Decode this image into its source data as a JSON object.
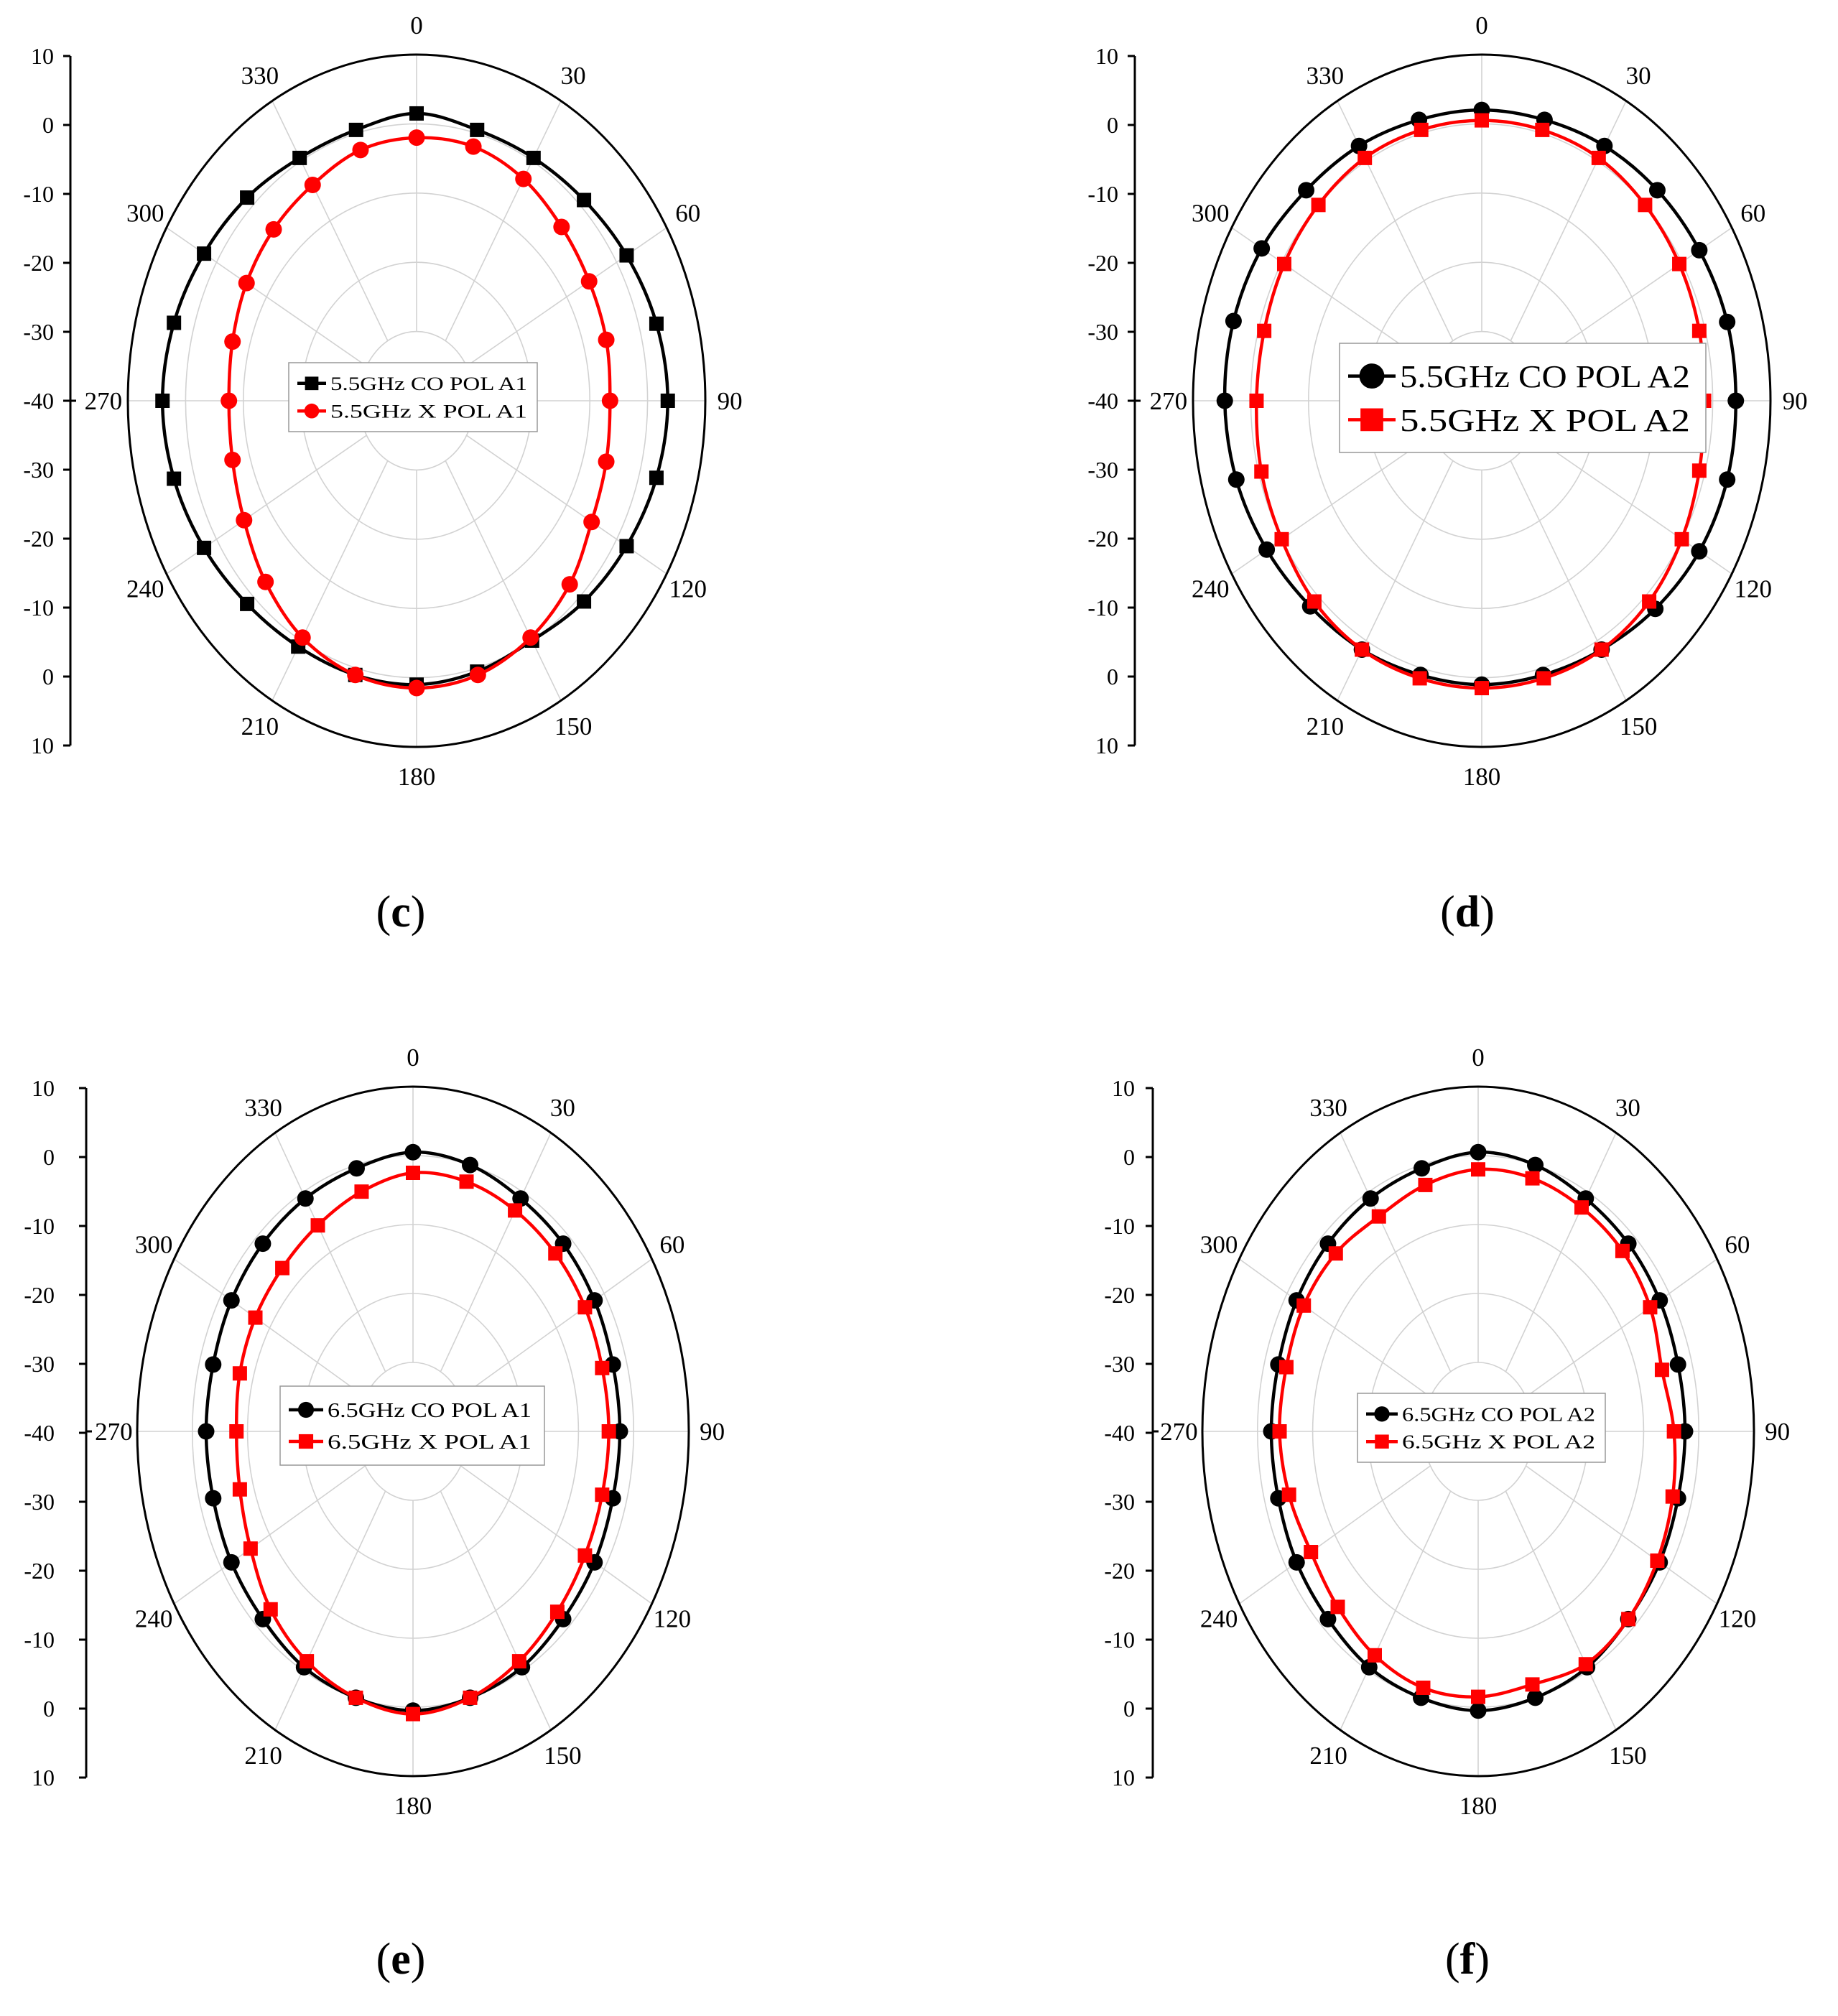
{
  "chart_data": [
    {
      "id": "c",
      "type": "polar-line",
      "caption": {
        "open": "(",
        "letter": "c",
        "close": ")"
      },
      "radial_ticks": [
        "10",
        "0",
        "-10",
        "-20",
        "-30",
        "-40",
        "-30",
        "-20",
        "-10",
        "0",
        "10"
      ],
      "angle_labels": [
        "0",
        "30",
        "60",
        "90",
        "120",
        "150",
        "180",
        "210",
        "240",
        "270",
        "300",
        "330"
      ],
      "r_range": [
        -40,
        10
      ],
      "grid": true,
      "legend_position": "center",
      "angles": [
        0,
        15,
        30,
        45,
        60,
        75,
        90,
        105,
        120,
        135,
        150,
        165,
        180,
        195,
        210,
        225,
        240,
        255,
        270,
        285,
        300,
        315,
        330,
        345
      ],
      "series": [
        {
          "name": "5.5GHz  CO POL A1",
          "color": "#000000",
          "marker": "square",
          "values": [
            1.5,
            0.5,
            0.5,
            1,
            2,
            3,
            3.5,
            3,
            2,
            1,
            0,
            0.5,
            1,
            1,
            1,
            1.5,
            2.5,
            3.5,
            4,
            3.5,
            2.5,
            1.5,
            0.5,
            0.5
          ]
        },
        {
          "name": "5.5GHz X POL A1",
          "color": "#ff0000",
          "marker": "circle",
          "values": [
            -2,
            -2,
            -3,
            -4.5,
            -5.5,
            -6,
            -6.5,
            -6,
            -5,
            -2.5,
            -0.5,
            1,
            1.5,
            1,
            -0.5,
            -3,
            -5.5,
            -7,
            -7.5,
            -7,
            -6,
            -5,
            -4,
            -2.5
          ]
        }
      ]
    },
    {
      "id": "d",
      "type": "polar-line",
      "caption": {
        "open": "(",
        "letter": "d",
        "close": ")"
      },
      "radial_ticks": [
        "10",
        "0",
        "-10",
        "-20",
        "-30",
        "-40",
        "-30",
        "-20",
        "-10",
        "0",
        "10"
      ],
      "angle_labels": [
        "0",
        "30",
        "60",
        "90",
        "120",
        "150",
        "180",
        "210",
        "240",
        "270",
        "300",
        "330"
      ],
      "r_range": [
        -40,
        10
      ],
      "grid": true,
      "legend_position": "center-right",
      "angles": [
        0,
        15,
        30,
        45,
        60,
        75,
        90,
        105,
        120,
        135,
        150,
        165,
        180,
        195,
        210,
        225,
        240,
        255,
        270,
        285,
        300,
        315,
        330,
        345
      ],
      "series": [
        {
          "name": "5.5GHz  CO POL A2",
          "color": "#000000",
          "marker": "circle",
          "values": [
            2,
            2,
            2.5,
            3,
            3.5,
            4,
            4,
            4,
            3.5,
            2.5,
            1.5,
            1,
            1,
            1,
            1.5,
            2,
            3,
            4,
            4.5,
            4.5,
            4,
            3,
            2.5,
            2
          ]
        },
        {
          "name": "5.5GHz X POL A2",
          "color": "#ff0000",
          "marker": "square",
          "values": [
            0.5,
            0.5,
            0.5,
            0,
            -0.5,
            -1,
            -1.5,
            -1,
            0,
            1,
            1.5,
            1.5,
            1.5,
            1.5,
            1.5,
            1,
            0,
            -0.5,
            -1,
            -1,
            -0.5,
            0,
            0.5,
            0.5
          ]
        }
      ]
    },
    {
      "id": "e",
      "type": "polar-line",
      "caption": {
        "open": "(",
        "letter": "e",
        "close": ")"
      },
      "radial_ticks": [
        "10",
        "0",
        "-10",
        "-20",
        "-30",
        "-40",
        "-30",
        "-20",
        "-10",
        "0",
        "10"
      ],
      "angle_labels": [
        "0",
        "30",
        "60",
        "90",
        "120",
        "150",
        "180",
        "210",
        "240",
        "270",
        "300",
        "330"
      ],
      "r_range": [
        -40,
        10
      ],
      "grid": true,
      "legend_position": "center",
      "angles": [
        0,
        15,
        30,
        45,
        60,
        75,
        90,
        105,
        120,
        135,
        150,
        165,
        180,
        195,
        210,
        225,
        240,
        255,
        270,
        285,
        300,
        315,
        330,
        345
      ],
      "series": [
        {
          "name": "6.5GHz  CO POL A1",
          "color": "#000000",
          "marker": "circle",
          "values": [
            0.5,
            0,
            -1,
            -1.5,
            -2,
            -2.5,
            -2.5,
            -2.5,
            -2,
            -1.5,
            -0.5,
            0,
            0.5,
            0,
            -0.5,
            -1.5,
            -2,
            -2.5,
            -2.5,
            -2.5,
            -2,
            -1.5,
            -1,
            -0.5
          ]
        },
        {
          "name": "6.5GHz  X POL A1",
          "color": "#ff0000",
          "marker": "square",
          "values": [
            -2.5,
            -2.5,
            -3,
            -3.5,
            -4,
            -4.5,
            -4.5,
            -4.5,
            -4,
            -3,
            -1.5,
            0,
            1,
            0,
            -1.5,
            -3.5,
            -6,
            -7.5,
            -8,
            -7.5,
            -7,
            -6.5,
            -5.5,
            -4
          ]
        }
      ]
    },
    {
      "id": "f",
      "type": "polar-line",
      "caption": {
        "open": "(",
        "letter": "f",
        "close": ")"
      },
      "radial_ticks": [
        "10",
        "0",
        "-10",
        "-20",
        "-30",
        "-40",
        "-30",
        "-20",
        "-10",
        "0",
        "10"
      ],
      "angle_labels": [
        "0",
        "30",
        "60",
        "90",
        "120",
        "150",
        "180",
        "210",
        "240",
        "270",
        "300",
        "330"
      ],
      "r_range": [
        -40,
        10
      ],
      "grid": true,
      "legend_position": "center",
      "angles": [
        0,
        15,
        30,
        45,
        60,
        75,
        90,
        105,
        120,
        135,
        150,
        165,
        180,
        195,
        210,
        225,
        240,
        255,
        270,
        285,
        300,
        315,
        330,
        345
      ],
      "series": [
        {
          "name": "6.5GHz  CO POL A2",
          "color": "#000000",
          "marker": "circle",
          "values": [
            0.5,
            0,
            -1,
            -1.5,
            -2,
            -2.5,
            -2.5,
            -2.5,
            -2,
            -1.5,
            -0.5,
            0,
            0.5,
            0,
            -0.5,
            -1.5,
            -2,
            -2.5,
            -2.5,
            -2.5,
            -2,
            -1.5,
            -1,
            -0.5
          ]
        },
        {
          "name": "6.5GHz  X POL A2",
          "color": "#ff0000",
          "marker": "square",
          "values": [
            -2,
            -2,
            -2.5,
            -3,
            -4,
            -5.5,
            -4.5,
            -3.5,
            -2.5,
            -1.5,
            -1,
            -2,
            -1.5,
            -1.5,
            -2.5,
            -4,
            -5,
            -4.5,
            -4,
            -4,
            -3.5,
            -3.5,
            -4,
            -3
          ]
        }
      ]
    }
  ]
}
